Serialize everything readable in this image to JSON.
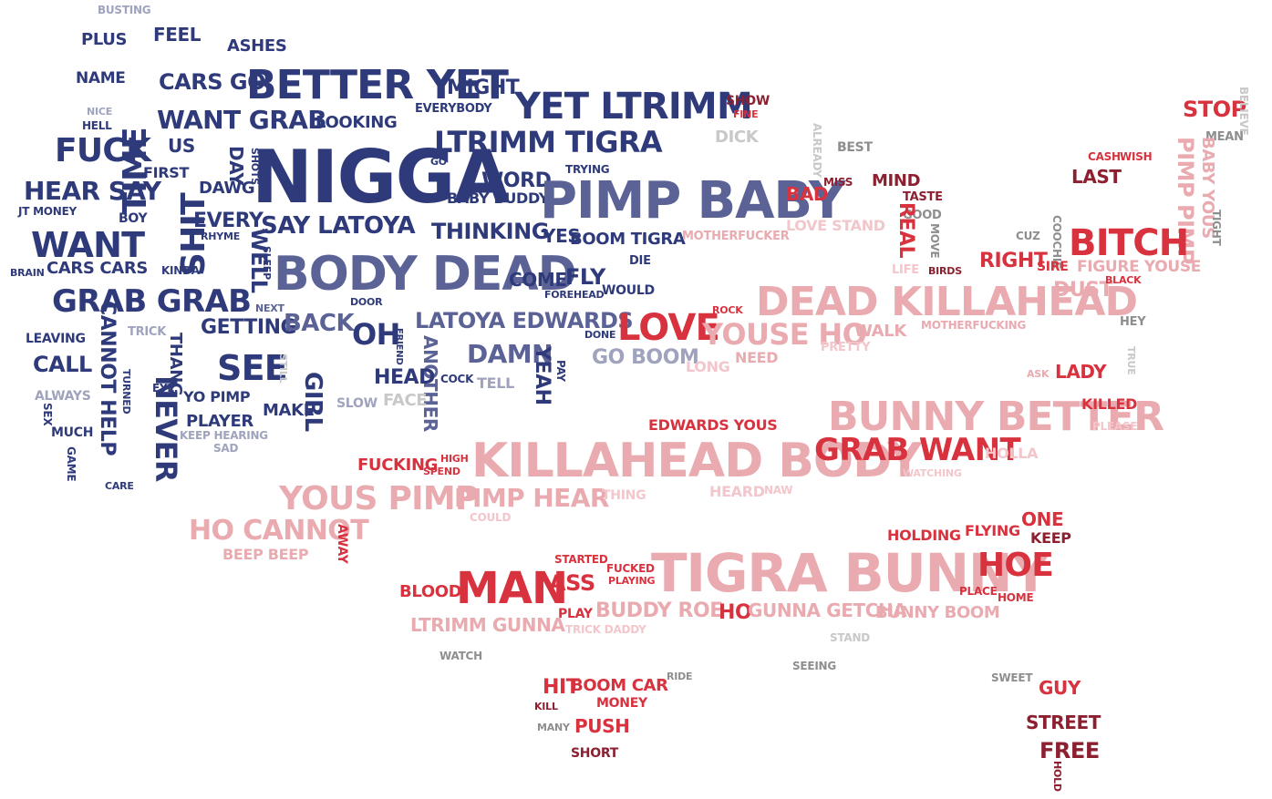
{
  "colors": {
    "navy": "#2e3a7a",
    "slate": "#5b6296",
    "grey_blue": "#9fa3bd",
    "pink": "#e9aab0",
    "light_pink": "#f2c6ca",
    "red": "#d8323e",
    "dark_red": "#8c2030",
    "grey": "#8e8e8e",
    "light_grey": "#c8c8c8"
  },
  "words": [
    "BUSTING",
    "PLUS",
    "FEEL",
    "ASHES",
    "NAME",
    "TIME",
    "CARS GO",
    "BETTER YET",
    "MIGHT",
    "NICE",
    "HELL",
    "WANT GRAB",
    "LOOKING",
    "EVERYBODY",
    "YET LTRIMM",
    "SHOW",
    "FINE",
    "STOP",
    "BELIEVE",
    "FUCK",
    "US",
    "NIGGA",
    "LTRIMM TIGRA",
    "DICK",
    "ALREADY",
    "BEST",
    "MEAN",
    "HEAR SAY",
    "FIRST",
    "DAY",
    "SHOTS",
    "GO",
    "WORD",
    "TRYING",
    "CASH",
    "WISH",
    "LAST",
    "JT MONEY",
    "DAWG",
    "BABY BUDDY",
    "PIMP BABY",
    "BAD",
    "MISS",
    "MIND",
    "PIMP PIMP",
    "BABY YOUS",
    "BOY",
    "SHIT",
    "EVERY",
    "SAY LATOYA",
    "THINKING",
    "TASTE",
    "GOOD",
    "TIGHT",
    "WANT",
    "RHYME",
    "YES",
    "BOOM TIGRA",
    "MOTHERFUCKER",
    "LOVE STAND",
    "REAL",
    "MOVE",
    "CUZ",
    "COOCHIE",
    "BITCH",
    "BRAIN",
    "CARS CARS",
    "KINDA",
    "WELL",
    "SLEEP",
    "BODY DEAD",
    "DIE",
    "LIFE",
    "BIRDS",
    "RIGHT",
    "SIRE",
    "FIGURE YOUSE",
    "GRAB GRAB",
    "COME",
    "FLY",
    "FOREHEAD",
    "WOULD",
    "DEAD KILLAHEAD",
    "DUST",
    "BLACK",
    "NEXT",
    "DOOR",
    "ROCK",
    "CANNOT HELP",
    "TRICK",
    "GETTING",
    "BACK",
    "LATOYA EDWARDS",
    "HEY",
    "LEAVING",
    "OH",
    "FRIEND",
    "DONE",
    "LOVE",
    "YOUSE HO",
    "WALK",
    "MOTHERFUCKING",
    "CALL",
    "THANG",
    "SEE",
    "STILL",
    "ANOTHER",
    "DAMN",
    "YEAH",
    "PAY",
    "GO BOOM",
    "PRETTY",
    "TRUE",
    "ALWAYS",
    "TURNED",
    "EYE",
    "GIRL",
    "HEAD",
    "COCK",
    "TELL",
    "LONG",
    "NEED",
    "ASK",
    "LADY",
    "SEX",
    "NEVER",
    "YO PIMP",
    "SLOW",
    "FACE",
    "BUNNY BETTER",
    "KILLED",
    "MUCH",
    "PLAYER",
    "MAKE",
    "EDWARDS YOUS",
    "PLEASE",
    "GAME",
    "KEEP HEARING",
    "SAD",
    "KILLAHEAD BODY",
    "GRAB WANT",
    "HOLLA",
    "CARE",
    "FUCKING",
    "HIGH",
    "SPEND",
    "WATCHING",
    "YOUS PIMP",
    "PIMP HEAR",
    "THING",
    "HEARD",
    "NAW",
    "COULD",
    "ONE",
    "HO CANNOT",
    "AWAY",
    "HOLDING",
    "FLYING",
    "KEEP",
    "BEEP BEEP",
    "STARTED",
    "FUCKED",
    "PLAYING",
    "TIGRA BUNNY",
    "HOE",
    "BLOOD",
    "MAN",
    "ASS",
    "PLACE",
    "HOME",
    "PLAY",
    "BUDDY ROE",
    "HO",
    "GUNNA GETCHA",
    "BUNNY BOOM",
    "LTRIMM GUNNA",
    "TRICK DADDY",
    "STAND",
    "WATCH",
    "SEEING",
    "RIDE",
    "SWEET",
    "HIT",
    "BOOM CAR",
    "GUY",
    "KILL",
    "MONEY",
    "MANY",
    "PUSH",
    "STREET",
    "SHORT",
    "FREE",
    "HOLD"
  ]
}
